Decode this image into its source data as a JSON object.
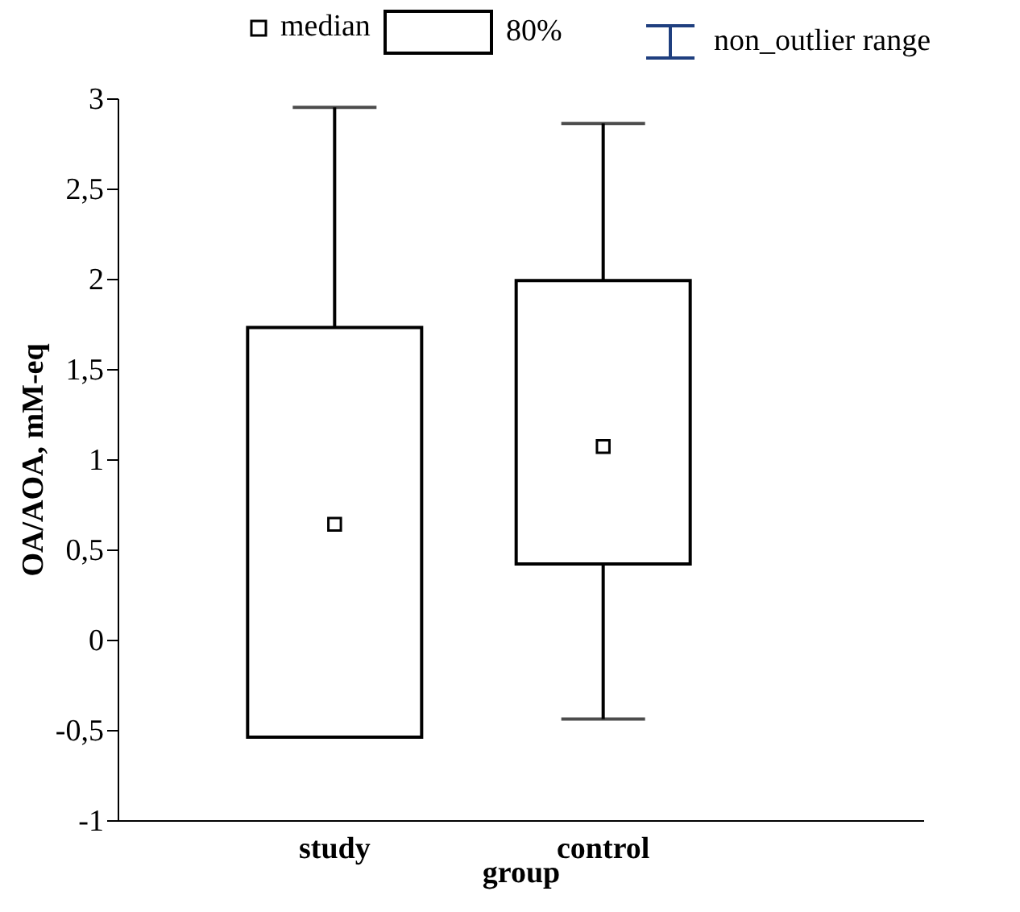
{
  "chart_data": {
    "type": "box",
    "xlabel": "group",
    "ylabel": "OA/AOA, mM-eq",
    "categories": [
      "study",
      "control"
    ],
    "boxes": [
      {
        "low": -0.54,
        "q1": -0.54,
        "median": 0.64,
        "q3": 1.73,
        "high": 2.95
      },
      {
        "low": -0.44,
        "q1": 0.42,
        "median": 1.07,
        "q3": 1.99,
        "high": 2.86
      }
    ],
    "ylim": [
      -1,
      3
    ],
    "yticks": [
      -1,
      {
        "value": -0.5,
        "label": "-0,5"
      },
      0,
      {
        "value": 0.5,
        "label": "0,5"
      },
      1,
      {
        "value": 1.5,
        "label": "1,5"
      },
      2,
      {
        "value": 2.5,
        "label": "2,5"
      },
      3
    ],
    "annotations": [
      "median",
      "80%",
      "non_outlier range"
    ],
    "grid": false,
    "marker": "square"
  }
}
